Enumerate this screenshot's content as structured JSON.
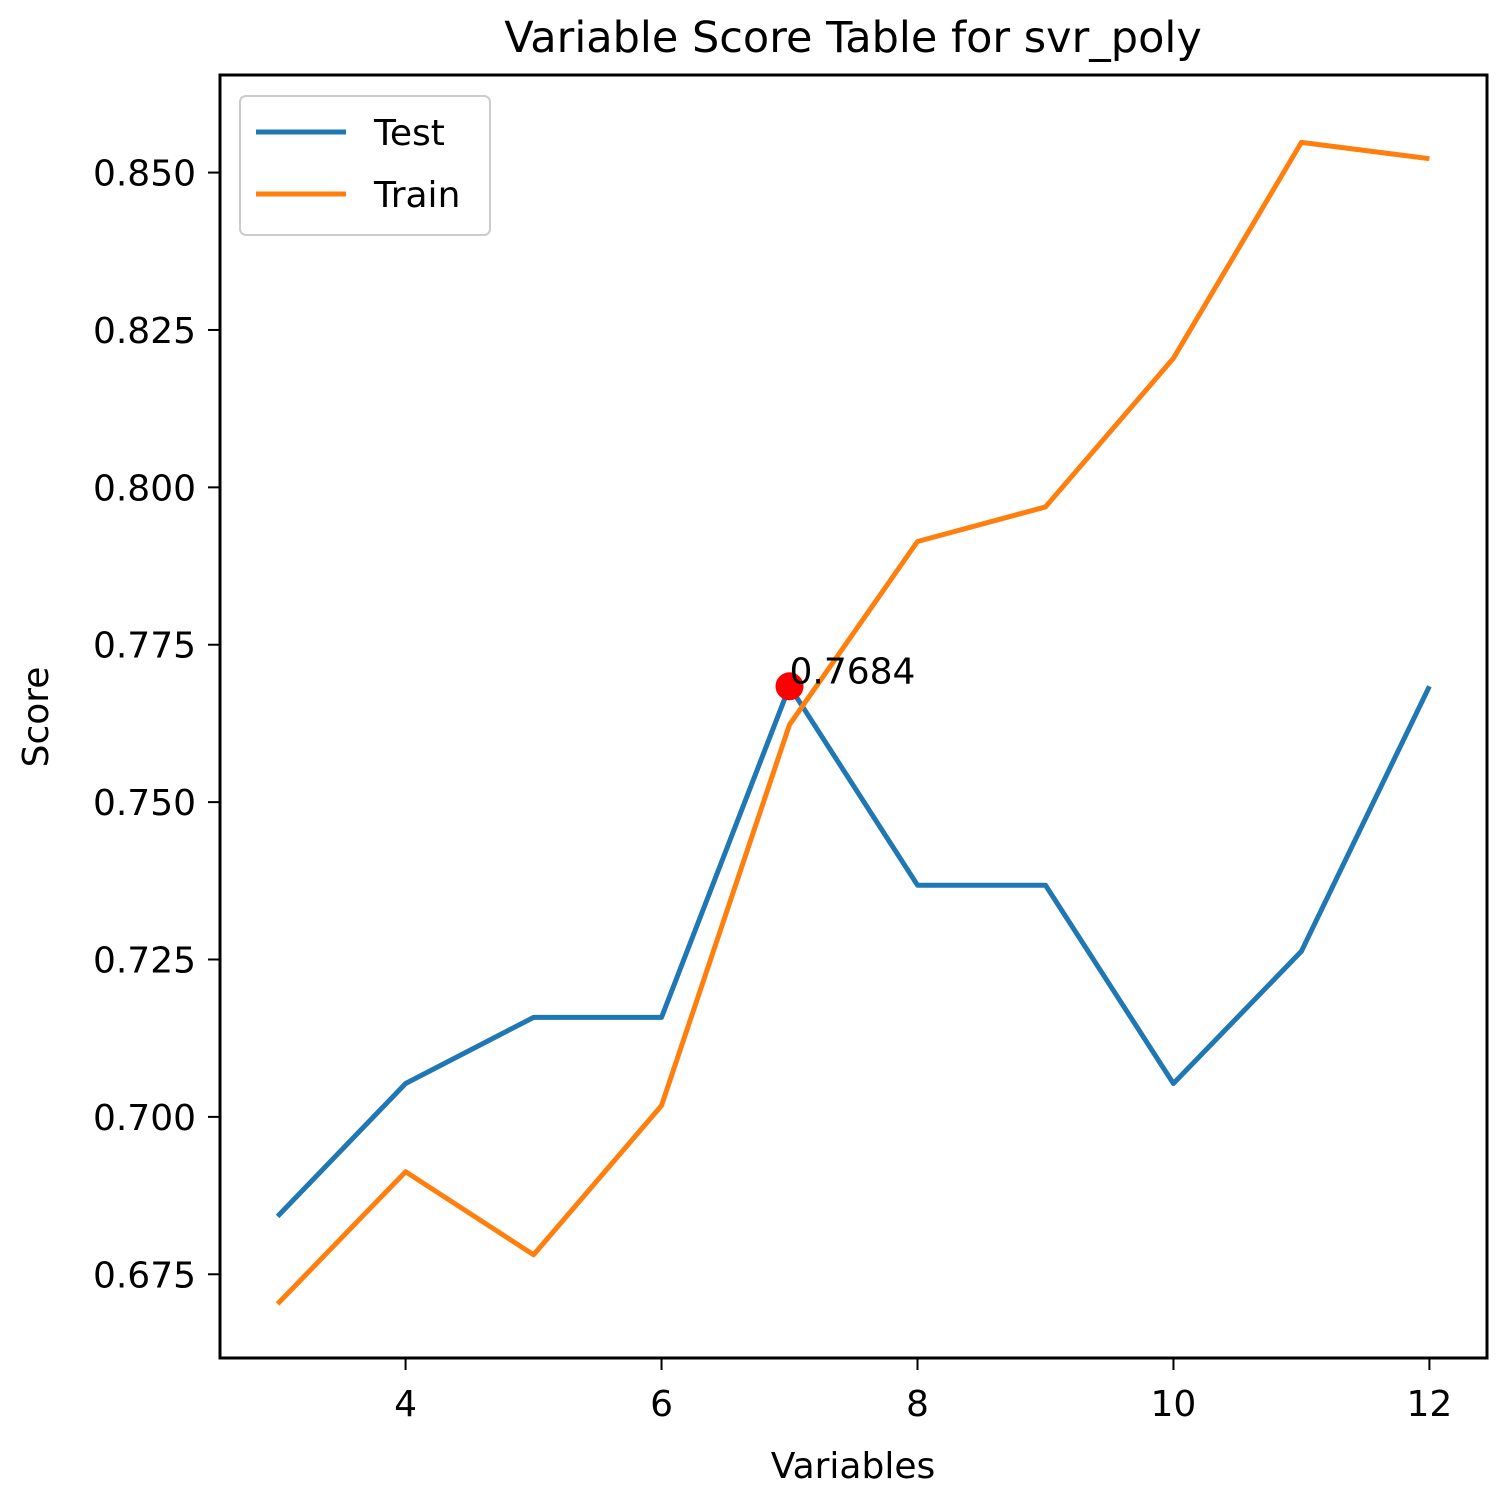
{
  "chart_data": {
    "type": "line",
    "title": "Variable Score Table for svr_poly",
    "xlabel": "Variables",
    "ylabel": "Score",
    "x": [
      3,
      4,
      5,
      6,
      7,
      8,
      9,
      10,
      11,
      12
    ],
    "xlim": [
      2.55,
      12.45
    ],
    "ylim": [
      0.6617,
      0.8655
    ],
    "xticks": [
      4,
      6,
      8,
      10,
      12
    ],
    "yticks": [
      0.675,
      0.7,
      0.725,
      0.75,
      0.775,
      0.8,
      0.825,
      0.85
    ],
    "xtick_labels": [
      "4",
      "6",
      "8",
      "10",
      "12"
    ],
    "ytick_labels": [
      "0.675",
      "0.700",
      "0.725",
      "0.750",
      "0.775",
      "0.800",
      "0.825",
      "0.850"
    ],
    "series": [
      {
        "name": "Test",
        "color": "#1f77b4",
        "values": [
          0.6842,
          0.7053,
          0.7158,
          0.7158,
          0.7684,
          0.7368,
          0.7368,
          0.7053,
          0.7263,
          0.7684
        ]
      },
      {
        "name": "Train",
        "color": "#ff7f0e",
        "values": [
          0.6703,
          0.6913,
          0.6781,
          0.7018,
          0.7623,
          0.7914,
          0.7969,
          0.8205,
          0.8548,
          0.8522
        ]
      }
    ],
    "highlight": {
      "x": 7,
      "y": 0.7684,
      "label": "0.7684",
      "color": "#ff0000"
    },
    "legend_position": "upper-left",
    "grid": false
  }
}
